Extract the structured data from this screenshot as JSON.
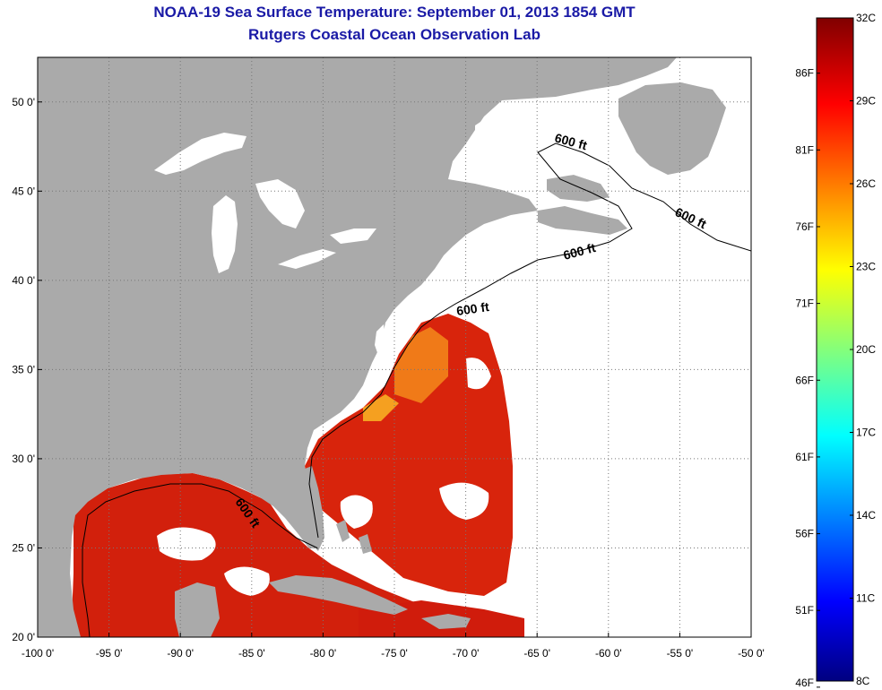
{
  "header": {
    "title": "NOAA-19 Sea Surface Temperature:  September 01, 2013 1854 GMT",
    "subtitle": "Rutgers Coastal Ocean Observation Lab"
  },
  "axes": {
    "lon_ticks": [
      "-100 0'",
      "-95 0'",
      "-90 0'",
      "-85 0'",
      "-80 0'",
      "-75 0'",
      "-70 0'",
      "-65 0'",
      "-60 0'",
      "-55 0'",
      "-50 0'"
    ],
    "lat_ticks": [
      "50 0'",
      "45 0'",
      "40 0'",
      "35 0'",
      "30 0'",
      "25 0'",
      "20 0'"
    ],
    "lon_range": [
      -100,
      -50
    ],
    "lat_range": [
      20,
      52.5
    ]
  },
  "contour_label": "600 ft",
  "colorbar": {
    "f_labels": [
      "86F",
      "81F",
      "76F",
      "71F",
      "66F",
      "61F",
      "56F",
      "51F",
      "46F"
    ],
    "c_labels": [
      "32C",
      "29C",
      "26C",
      "23C",
      "20C",
      "17C",
      "14C",
      "11C",
      "8C"
    ],
    "colors": [
      "#800000",
      "#ff0000",
      "#ff8000",
      "#ffff00",
      "#80ff80",
      "#00ffff",
      "#0080ff",
      "#0000ff",
      "#000080"
    ]
  },
  "colors": {
    "land": "#aaaaaa",
    "title": "#1a1aa6",
    "warm_sst": "#d81c0c",
    "no_data": "#ffffff"
  }
}
